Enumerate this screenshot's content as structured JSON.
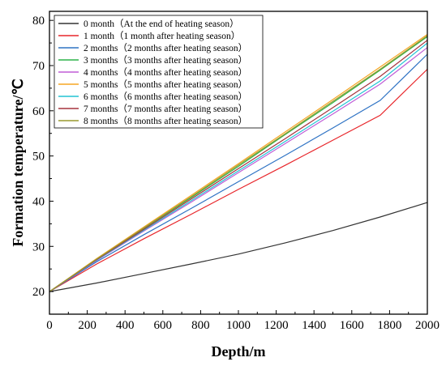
{
  "chart_data": {
    "type": "line",
    "xlabel": "Depth/m",
    "ylabel": "Formation temperature/℃",
    "xlim": [
      0,
      2000
    ],
    "ylim": [
      15,
      82
    ],
    "xticks": [
      0,
      200,
      400,
      600,
      800,
      1000,
      1200,
      1400,
      1600,
      1800,
      2000
    ],
    "yticks": [
      20,
      30,
      40,
      50,
      60,
      70,
      80
    ],
    "grid": false,
    "legend_position": "top-left",
    "x": [
      0,
      250,
      500,
      750,
      1000,
      1250,
      1500,
      1750,
      2000
    ],
    "series": [
      {
        "name": "0 month（At the end of heating season）",
        "color": "#333333",
        "values": [
          20.0,
          21.9,
          24.0,
          26.1,
          28.3,
          30.8,
          33.5,
          36.5,
          39.7
        ]
      },
      {
        "name": "1 month（1 month after heating season）",
        "color": "#e8262b",
        "values": [
          20.0,
          26.1,
          31.7,
          37.1,
          42.6,
          48.0,
          53.5,
          59.0,
          69.2
        ]
      },
      {
        "name": "2 months（2 months after heating season）",
        "color": "#2f73c4",
        "values": [
          20.0,
          26.6,
          32.6,
          38.4,
          44.3,
          50.2,
          56.2,
          62.3,
          72.5
        ]
      },
      {
        "name": "3 months（3 months after heating season）",
        "color": "#2db34a",
        "values": [
          20.0,
          27.2,
          34.0,
          40.8,
          47.7,
          54.8,
          61.8,
          69.0,
          76.4
        ]
      },
      {
        "name": "4 months（4 months after heating season）",
        "color": "#c05dd6",
        "values": [
          20.0,
          26.9,
          33.4,
          39.8,
          46.3,
          52.8,
          59.3,
          65.9,
          74.0
        ]
      },
      {
        "name": "5 months（5 months after heating season）",
        "color": "#f5a623",
        "values": [
          20.0,
          27.3,
          34.3,
          41.3,
          48.3,
          55.4,
          62.5,
          69.7,
          76.9
        ]
      },
      {
        "name": "6 months（6 months after heating season）",
        "color": "#22c4d4",
        "values": [
          20.0,
          27.0,
          33.6,
          40.1,
          46.7,
          53.3,
          59.9,
          66.6,
          75.0
        ]
      },
      {
        "name": "7 months（7 months after heating season）",
        "color": "#a5323d",
        "values": [
          20.0,
          27.1,
          33.8,
          40.5,
          47.2,
          53.9,
          60.7,
          67.6,
          75.6
        ]
      },
      {
        "name": "8 months（8 months after heating season）",
        "color": "#9a9a2e",
        "values": [
          20.0,
          27.2,
          34.1,
          41.0,
          48.0,
          55.0,
          62.1,
          69.2,
          76.6
        ]
      }
    ]
  }
}
